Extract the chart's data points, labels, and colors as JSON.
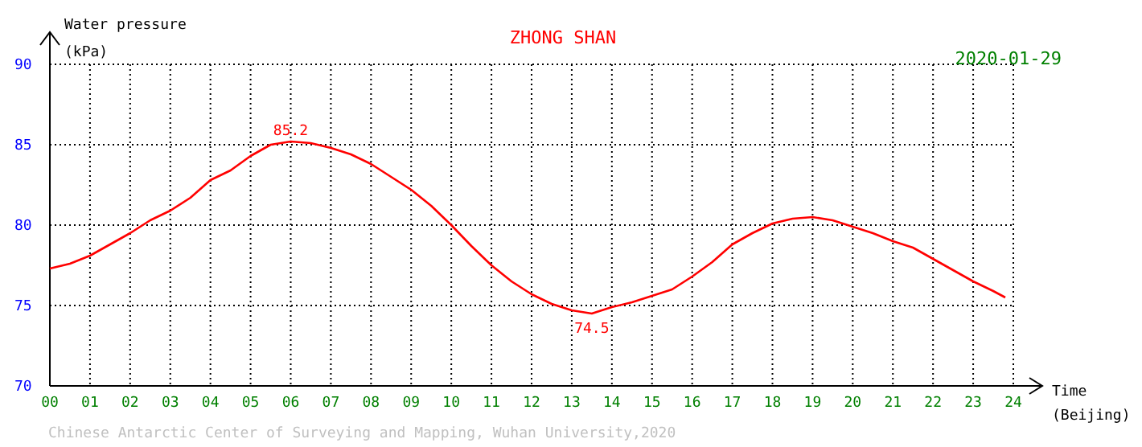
{
  "chart_data": {
    "type": "line",
    "title": "ZHONG SHAN",
    "subtitle": "2020-01-29",
    "xlabel": "Time\n(Beijing)",
    "ylabel": "Water pressure\n(kPa)",
    "x": [
      0,
      0.5,
      1,
      1.5,
      2,
      2.5,
      3,
      3.5,
      4,
      4.5,
      5,
      5.5,
      6,
      6.5,
      7,
      7.5,
      8,
      8.5,
      9,
      9.5,
      10,
      10.5,
      11,
      11.5,
      12,
      12.5,
      13,
      13.5,
      14,
      14.5,
      15,
      15.5,
      16,
      16.5,
      17,
      17.5,
      18,
      18.5,
      19,
      19.5,
      20,
      20.5,
      21,
      21.5,
      22,
      22.5,
      23,
      23.5,
      23.8
    ],
    "series": [
      {
        "color": "#ff0000",
        "values": [
          77.3,
          77.6,
          78.1,
          78.8,
          79.5,
          80.3,
          80.9,
          81.7,
          82.8,
          83.4,
          84.3,
          85.0,
          85.2,
          85.1,
          84.8,
          84.4,
          83.8,
          83.0,
          82.2,
          81.2,
          80.0,
          78.7,
          77.5,
          76.5,
          75.7,
          75.1,
          74.7,
          74.5,
          74.9,
          75.2,
          75.6,
          76.0,
          76.8,
          77.7,
          78.8,
          79.5,
          80.1,
          80.4,
          80.5,
          80.3,
          79.9,
          79.5,
          79.0,
          78.6,
          77.9,
          77.2,
          76.5,
          75.9,
          75.5
        ]
      }
    ],
    "xlim": [
      0,
      24
    ],
    "ylim": [
      70,
      90
    ],
    "xticks": [
      {
        "value": 0,
        "label": "00"
      },
      {
        "value": 1,
        "label": "01"
      },
      {
        "value": 2,
        "label": "02"
      },
      {
        "value": 3,
        "label": "03"
      },
      {
        "value": 4,
        "label": "04"
      },
      {
        "value": 5,
        "label": "05"
      },
      {
        "value": 6,
        "label": "06"
      },
      {
        "value": 7,
        "label": "07"
      },
      {
        "value": 8,
        "label": "08"
      },
      {
        "value": 9,
        "label": "09"
      },
      {
        "value": 10,
        "label": "10"
      },
      {
        "value": 11,
        "label": "11"
      },
      {
        "value": 12,
        "label": "12"
      },
      {
        "value": 13,
        "label": "13"
      },
      {
        "value": 14,
        "label": "14"
      },
      {
        "value": 15,
        "label": "15"
      },
      {
        "value": 16,
        "label": "16"
      },
      {
        "value": 17,
        "label": "17"
      },
      {
        "value": 18,
        "label": "18"
      },
      {
        "value": 19,
        "label": "19"
      },
      {
        "value": 20,
        "label": "20"
      },
      {
        "value": 21,
        "label": "21"
      },
      {
        "value": 22,
        "label": "22"
      },
      {
        "value": 23,
        "label": "23"
      },
      {
        "value": 24,
        "label": "24"
      }
    ],
    "yticks": [
      70,
      75,
      80,
      85,
      90
    ],
    "grid": true,
    "marker": "none",
    "line_style": "solid",
    "annotations": [
      {
        "text": "85.2",
        "x": 6,
        "y": 85.2
      },
      {
        "text": "74.5",
        "x": 13.5,
        "y": 74.5
      },
      "Chinese Antarctic Center of Surveying and Mapping, Wuhan University,2020"
    ]
  }
}
